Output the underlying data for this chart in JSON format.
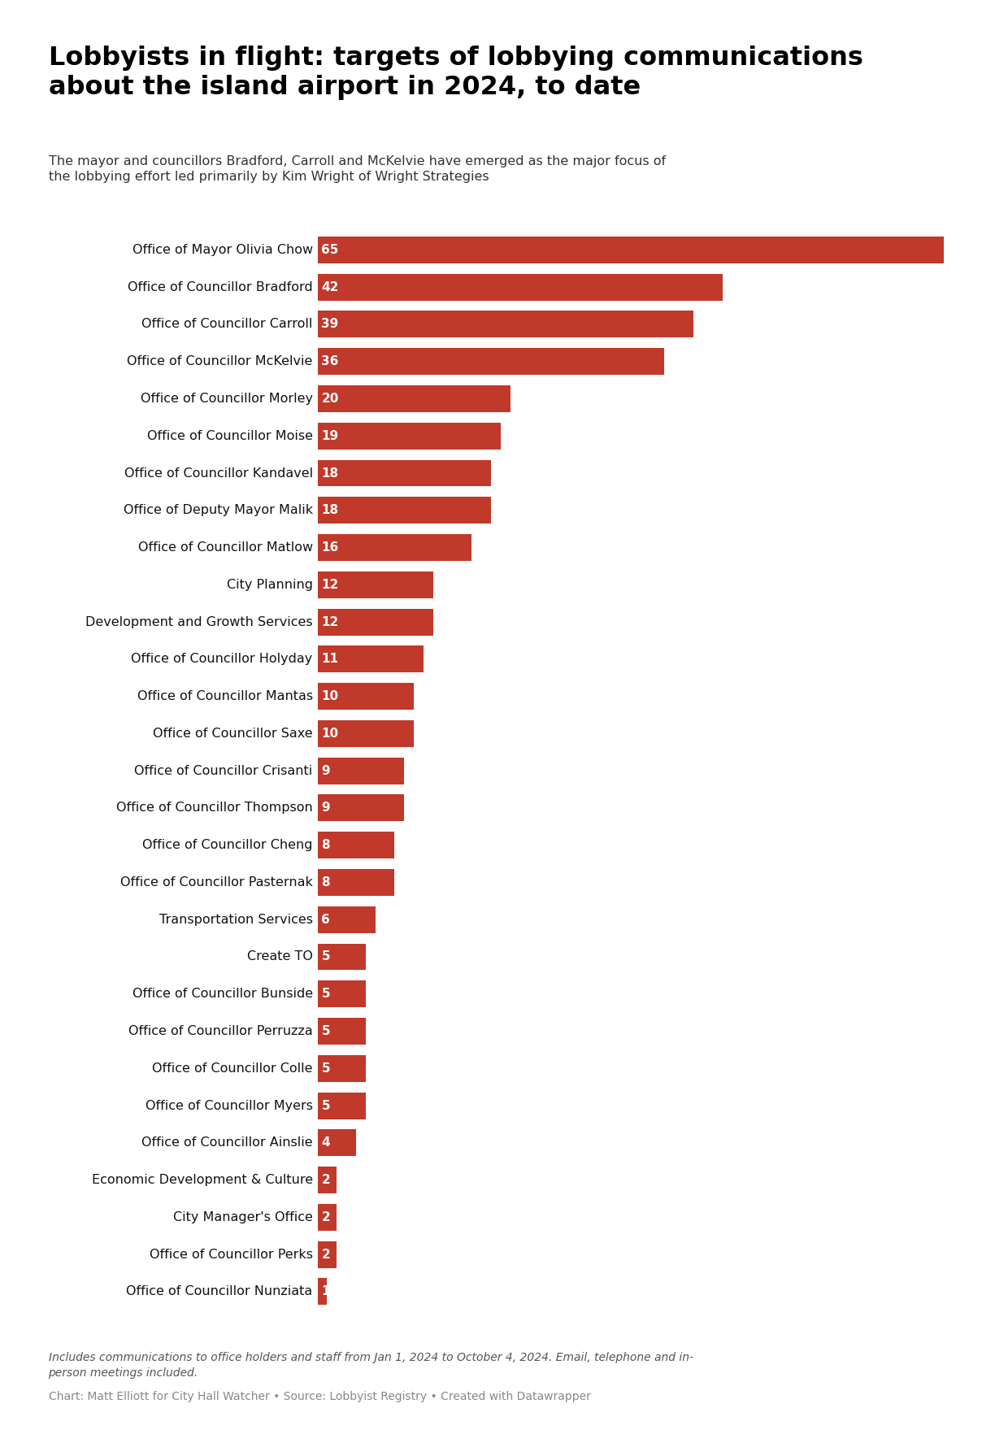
{
  "title": "Lobbyists in flight: targets of lobbying communications\nabout the island airport in 2024, to date",
  "subtitle": "The mayor and councillors Bradford, Carroll and McKelvie have emerged as the major focus of\nthe lobbying effort led primarily by Kim Wright of Wright Strategies",
  "footnote": "Includes communications to office holders and staff from Jan 1, 2024 to October 4, 2024. Email, telephone and in-\nperson meetings included.",
  "credit": "Chart: Matt Elliott for City Hall Watcher • Source: Lobbyist Registry • Created with Datawrapper",
  "categories": [
    "Office of Mayor Olivia Chow",
    "Office of Councillor Bradford",
    "Office of Councillor Carroll",
    "Office of Councillor McKelvie",
    "Office of Councillor Morley",
    "Office of Councillor Moise",
    "Office of Councillor Kandavel",
    "Office of Deputy Mayor Malik",
    "Office of Councillor Matlow",
    "City Planning",
    "Development and Growth Services",
    "Office of Councillor Holyday",
    "Office of Councillor Mantas",
    "Office of Councillor Saxe",
    "Office of Councillor Crisanti",
    "Office of Councillor Thompson",
    "Office of Councillor Cheng",
    "Office of Councillor Pasternak",
    "Transportation Services",
    "Create TO",
    "Office of Councillor Bunside",
    "Office of Councillor Perruzza",
    "Office of Councillor Colle",
    "Office of Councillor Myers",
    "Office of Councillor Ainslie",
    "Economic Development & Culture",
    "City Manager's Office",
    "Office of Councillor Perks",
    "Office of Councillor Nunziata"
  ],
  "values": [
    65,
    42,
    39,
    36,
    20,
    19,
    18,
    18,
    16,
    12,
    12,
    11,
    10,
    10,
    9,
    9,
    8,
    8,
    6,
    5,
    5,
    5,
    5,
    5,
    4,
    2,
    2,
    2,
    1
  ],
  "bar_color": "#c0392b",
  "label_color": "#ffffff",
  "background_color": "#ffffff",
  "title_color": "#000000",
  "subtitle_color": "#333333",
  "footnote_color": "#555555",
  "credit_color": "#888888",
  "title_fontsize": 23,
  "subtitle_fontsize": 11.5,
  "label_fontsize": 11,
  "category_fontsize": 11.5,
  "footnote_fontsize": 10,
  "credit_fontsize": 10
}
